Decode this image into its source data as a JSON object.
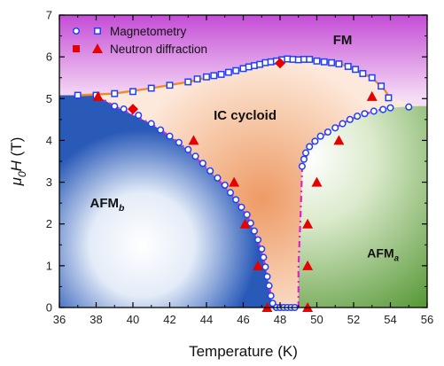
{
  "chart_data": {
    "type": "scatter",
    "x_label": "Temperature (K)",
    "y_label": {
      "symbol": "μ",
      "sub": "0",
      "var": "H",
      "unit": " (T)"
    },
    "xlim": [
      36,
      56
    ],
    "ylim": [
      0,
      7
    ],
    "x_ticks": [
      36,
      38,
      40,
      42,
      44,
      46,
      48,
      50,
      52,
      54,
      56
    ],
    "y_ticks": [
      0,
      1,
      2,
      3,
      4,
      5,
      6,
      7
    ],
    "grid": false,
    "legend_position": "top-left",
    "colors": {
      "magnetometry": "#1f3fff",
      "neutron": "#e60000",
      "fm_fill": "#c44cd6",
      "afmb_fill": "#2a5ab8",
      "afma_fill": "#5a9a3a",
      "ic_fill": "#f0a070",
      "line_orange": "#f08a24",
      "line_magenta": "#e020d0"
    },
    "regions": [
      {
        "id": "fm",
        "label": "FM",
        "label_x": 51.4,
        "label_y": 6.3,
        "font_size": 15
      },
      {
        "id": "ic",
        "label": "IC cycloid",
        "label_x": 46.1,
        "label_y": 4.5,
        "font_size": 15
      },
      {
        "id": "afmb",
        "label": "AFM",
        "sub": "b",
        "label_x": 38.6,
        "label_y": 2.4,
        "font_size": 15
      },
      {
        "id": "afma",
        "label": "AFM",
        "sub": "a",
        "label_x": 53.6,
        "label_y": 1.2,
        "font_size": 14
      }
    ],
    "legend": [
      {
        "label": "Magnetometry",
        "marker_a": "circle",
        "marker_b": "square",
        "series": "magnetometry"
      },
      {
        "label": "Neutron diffraction",
        "marker_a": "square-filled",
        "marker_b": "triangle",
        "series": "neutron"
      }
    ],
    "series": [
      {
        "name": "Magnetometry",
        "marker": "square",
        "points": [
          [
            37,
            5.08
          ],
          [
            38,
            5.08
          ],
          [
            39,
            5.12
          ],
          [
            40,
            5.17
          ],
          [
            41,
            5.25
          ],
          [
            42,
            5.32
          ],
          [
            43,
            5.4
          ],
          [
            43.5,
            5.47
          ],
          [
            44,
            5.52
          ],
          [
            44.4,
            5.55
          ],
          [
            44.8,
            5.58
          ],
          [
            45.2,
            5.63
          ],
          [
            45.6,
            5.67
          ],
          [
            46,
            5.72
          ],
          [
            46.3,
            5.76
          ],
          [
            46.6,
            5.79
          ],
          [
            46.9,
            5.82
          ],
          [
            47.2,
            5.86
          ],
          [
            47.5,
            5.88
          ],
          [
            47.8,
            5.9
          ],
          [
            48.1,
            5.93
          ],
          [
            48.4,
            5.95
          ],
          [
            48.7,
            5.94
          ],
          [
            49,
            5.93
          ],
          [
            49.3,
            5.94
          ],
          [
            49.6,
            5.94
          ],
          [
            50,
            5.9
          ],
          [
            50.4,
            5.88
          ],
          [
            50.8,
            5.86
          ],
          [
            51.2,
            5.83
          ],
          [
            51.7,
            5.77
          ],
          [
            52.1,
            5.7
          ],
          [
            52.5,
            5.6
          ],
          [
            53,
            5.5
          ],
          [
            53.5,
            5.3
          ],
          [
            53.9,
            5.02
          ]
        ]
      },
      {
        "name": "Magnetometry",
        "marker": "circle",
        "points": [
          [
            39,
            4.82
          ],
          [
            39.5,
            4.75
          ],
          [
            40.3,
            4.6
          ],
          [
            41,
            4.4
          ],
          [
            41.5,
            4.25
          ],
          [
            42,
            4.1
          ],
          [
            42.5,
            3.95
          ],
          [
            43,
            3.78
          ],
          [
            43.4,
            3.62
          ],
          [
            43.8,
            3.45
          ],
          [
            44.2,
            3.27
          ],
          [
            44.6,
            3.1
          ],
          [
            45,
            2.93
          ],
          [
            45.3,
            2.75
          ],
          [
            45.6,
            2.58
          ],
          [
            45.9,
            2.4
          ],
          [
            46.2,
            2.22
          ],
          [
            46.4,
            2.02
          ],
          [
            46.6,
            1.83
          ],
          [
            46.8,
            1.62
          ],
          [
            47,
            1.4
          ],
          [
            47.1,
            1.2
          ],
          [
            47.2,
            0.97
          ],
          [
            47.3,
            0.74
          ],
          [
            47.4,
            0.52
          ],
          [
            47.5,
            0.28
          ],
          [
            47.6,
            0.1
          ],
          [
            47.8,
            0.0
          ],
          [
            48.0,
            0.0
          ],
          [
            48.2,
            0.0
          ],
          [
            48.4,
            0.0
          ],
          [
            48.6,
            0.0
          ],
          [
            48.8,
            0.0
          ],
          [
            49.2,
            3.38
          ],
          [
            49.3,
            3.55
          ],
          [
            49.4,
            3.7
          ],
          [
            49.6,
            3.85
          ],
          [
            49.9,
            3.98
          ],
          [
            50.2,
            4.1
          ],
          [
            50.6,
            4.2
          ],
          [
            51,
            4.3
          ],
          [
            51.4,
            4.4
          ],
          [
            51.8,
            4.5
          ],
          [
            52.2,
            4.58
          ],
          [
            52.6,
            4.64
          ],
          [
            53.1,
            4.7
          ],
          [
            53.6,
            4.74
          ],
          [
            54.0,
            4.78
          ],
          [
            55,
            4.8
          ]
        ]
      },
      {
        "name": "Neutron diffraction",
        "marker": "triangle",
        "points": [
          [
            38.1,
            5.05
          ],
          [
            43.3,
            4.0
          ],
          [
            45.5,
            3.0
          ],
          [
            46.1,
            2.0
          ],
          [
            46.8,
            1.0
          ],
          [
            47.3,
            0.0
          ],
          [
            49.5,
            0.0
          ],
          [
            49.5,
            1.0
          ],
          [
            49.5,
            2.0
          ],
          [
            50.0,
            3.0
          ],
          [
            51.2,
            4.0
          ],
          [
            53.0,
            5.05
          ]
        ]
      },
      {
        "name": "Neutron diffraction",
        "marker": "diamond",
        "points": [
          [
            40.0,
            4.75
          ],
          [
            48.0,
            5.85
          ]
        ]
      }
    ],
    "phase_lines": {
      "fm_boundary": [
        [
          37,
          5.08
        ],
        [
          39,
          5.12
        ],
        [
          41,
          5.25
        ],
        [
          43,
          5.4
        ],
        [
          45,
          5.6
        ],
        [
          47,
          5.82
        ],
        [
          48.5,
          5.95
        ],
        [
          50,
          5.9
        ],
        [
          51.5,
          5.8
        ],
        [
          53,
          5.5
        ],
        [
          53.7,
          5.2
        ],
        [
          54,
          5.0
        ]
      ],
      "afmb_boundary": [
        [
          38,
          5.08
        ],
        [
          39,
          4.82
        ],
        [
          41,
          4.4
        ],
        [
          42.5,
          3.95
        ],
        [
          44,
          3.35
        ],
        [
          45.3,
          2.75
        ],
        [
          46.2,
          2.2
        ],
        [
          46.8,
          1.6
        ],
        [
          47.2,
          1.0
        ],
        [
          47.5,
          0.3
        ],
        [
          47.6,
          0.0
        ]
      ],
      "afma_boundary": [
        [
          49.0,
          0.0
        ],
        [
          49.0,
          1.0
        ],
        [
          49.1,
          2.0
        ],
        [
          49.2,
          3.3
        ],
        [
          49.6,
          3.85
        ],
        [
          50.6,
          4.2
        ],
        [
          51.8,
          4.5
        ],
        [
          53.1,
          4.7
        ],
        [
          54.0,
          4.78
        ]
      ]
    }
  }
}
